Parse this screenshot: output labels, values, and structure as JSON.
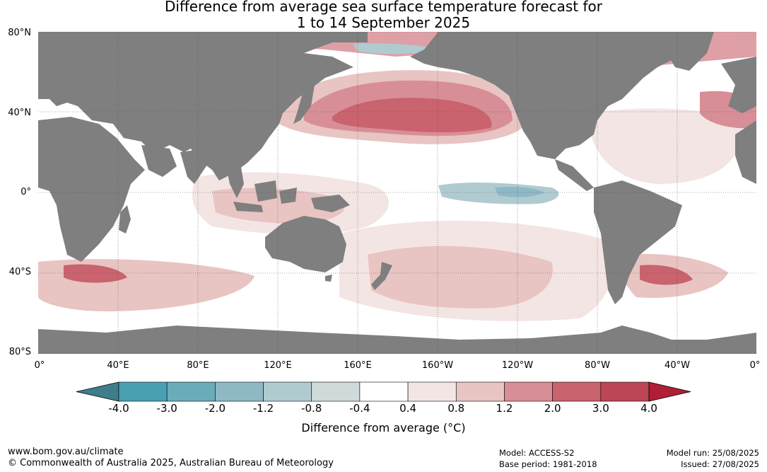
{
  "header": {
    "title_line1": "Difference from average sea surface temperature forecast for",
    "title_line2": "1 to 14 September 2025"
  },
  "map": {
    "lat_labels": [
      "80°N",
      "40°N",
      "0°",
      "40°S",
      "80°S"
    ],
    "lon_labels": [
      "0°",
      "40°E",
      "80°E",
      "120°E",
      "160°E",
      "160°W",
      "120°W",
      "80°W",
      "40°W",
      "0°"
    ],
    "colors": {
      "land": "#7f7f7f",
      "grid": "#555555"
    }
  },
  "colorbar": {
    "title": "Difference from average (°C)",
    "ticks": [
      "-4.0",
      "-3.0",
      "-2.0",
      "-1.2",
      "-0.8",
      "-0.4",
      "0.4",
      "0.8",
      "1.2",
      "2.0",
      "3.0",
      "4.0"
    ],
    "colors": [
      "#3e7d8a",
      "#4aa0b3",
      "#6aacba",
      "#8fb8c5",
      "#b0cbd0",
      "#cfdadb",
      "#ffffff",
      "#f3e5e4",
      "#e8c4c2",
      "#d88e96",
      "#c9636e",
      "#bd4654",
      "#b01f35"
    ]
  },
  "footer": {
    "url": "www.bom.gov.au/climate",
    "copyright": "© Commonwealth of Australia 2025, Australian Bureau of Meteorology",
    "model": "Model: ACCESS-S2",
    "base_period": "Base period: 1981-2018",
    "model_run": "Model run: 25/08/2025",
    "issued": "Issued: 27/08/2025"
  }
}
